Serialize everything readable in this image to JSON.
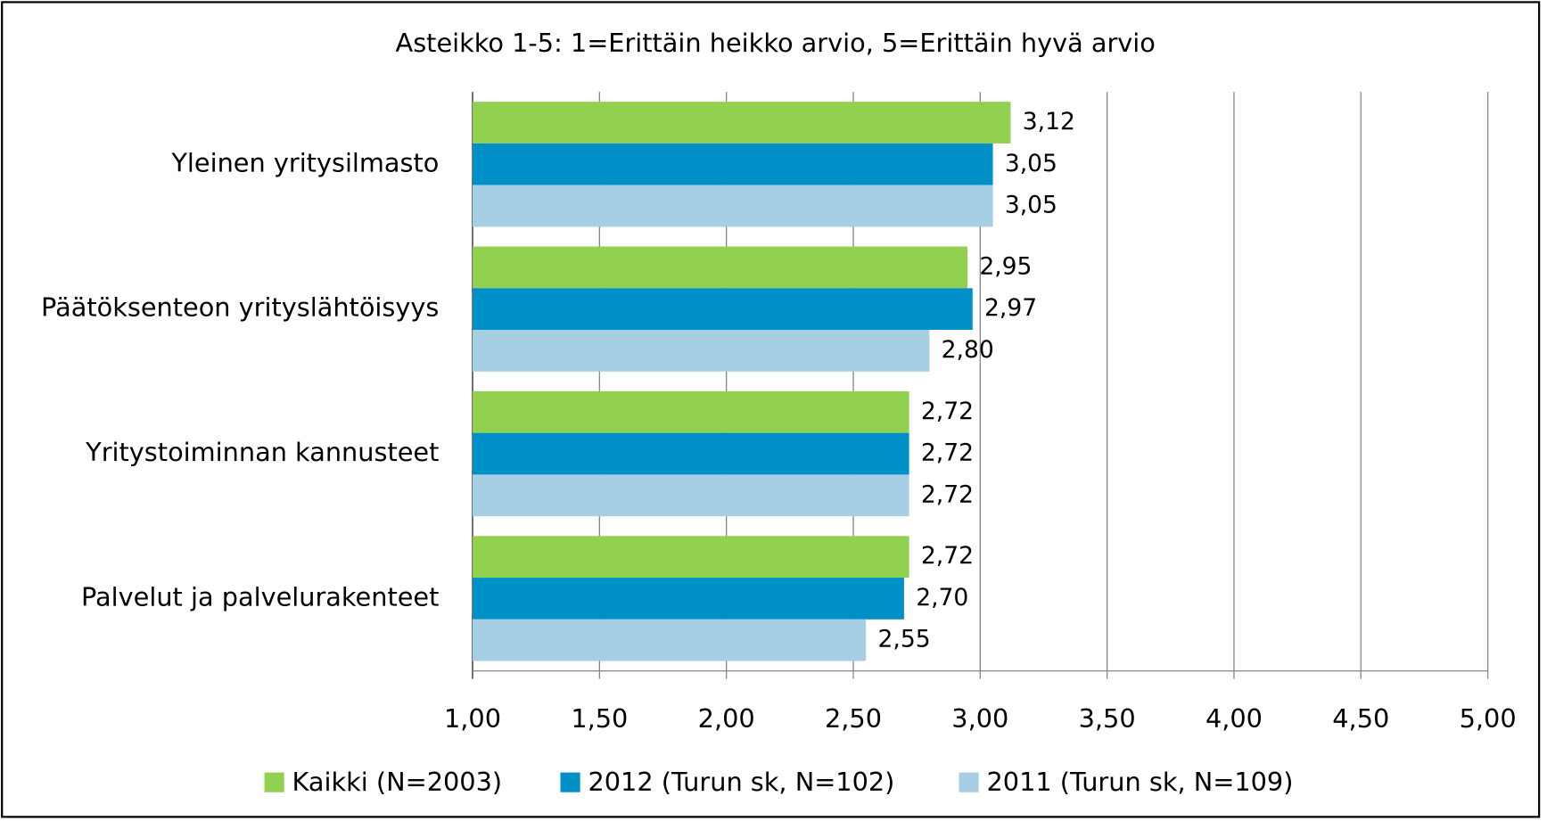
{
  "chart_data": {
    "type": "bar",
    "orientation": "horizontal",
    "title": "Asteikko 1-5: 1=Erittäin heikko arvio, 5=Erittäin hyvä arvio",
    "categories": [
      "Yleinen yritysilmasto",
      "Päätöksenteon yrityslähtöisyys",
      "Yritystoiminnan kannusteet",
      "Palvelut ja palvelurakenteet"
    ],
    "series": [
      {
        "name": "Kaikki (N=2003)",
        "color": "#92d050",
        "values": [
          3.12,
          2.95,
          2.72,
          2.72
        ],
        "value_labels": [
          "3,12",
          "2,95",
          "2,72",
          "2,72"
        ]
      },
      {
        "name": "2012 (Turun sk, N=102)",
        "color": "#0090c8",
        "values": [
          3.05,
          2.97,
          2.72,
          2.7
        ],
        "value_labels": [
          "3,05",
          "2,97",
          "2,72",
          "2,70"
        ]
      },
      {
        "name": "2011 (Turun sk, N=109)",
        "color": "#a6cfe3",
        "values": [
          3.05,
          2.8,
          2.72,
          2.55
        ],
        "value_labels": [
          "3,05",
          "2,80",
          "2,72",
          "2,55"
        ]
      }
    ],
    "xlim": [
      1,
      5
    ],
    "xticks": [
      {
        "value": 1,
        "label": "1,00"
      },
      {
        "value": 1.5,
        "label": "1,50"
      },
      {
        "value": 2,
        "label": "2,00"
      },
      {
        "value": 2.5,
        "label": "2,50"
      },
      {
        "value": 3,
        "label": "3,00"
      },
      {
        "value": 3.5,
        "label": "3,50"
      },
      {
        "value": 4,
        "label": "4,00"
      },
      {
        "value": 4.5,
        "label": "4,50"
      },
      {
        "value": 5,
        "label": "5,00"
      }
    ],
    "grid": true,
    "legend": "bottom"
  }
}
